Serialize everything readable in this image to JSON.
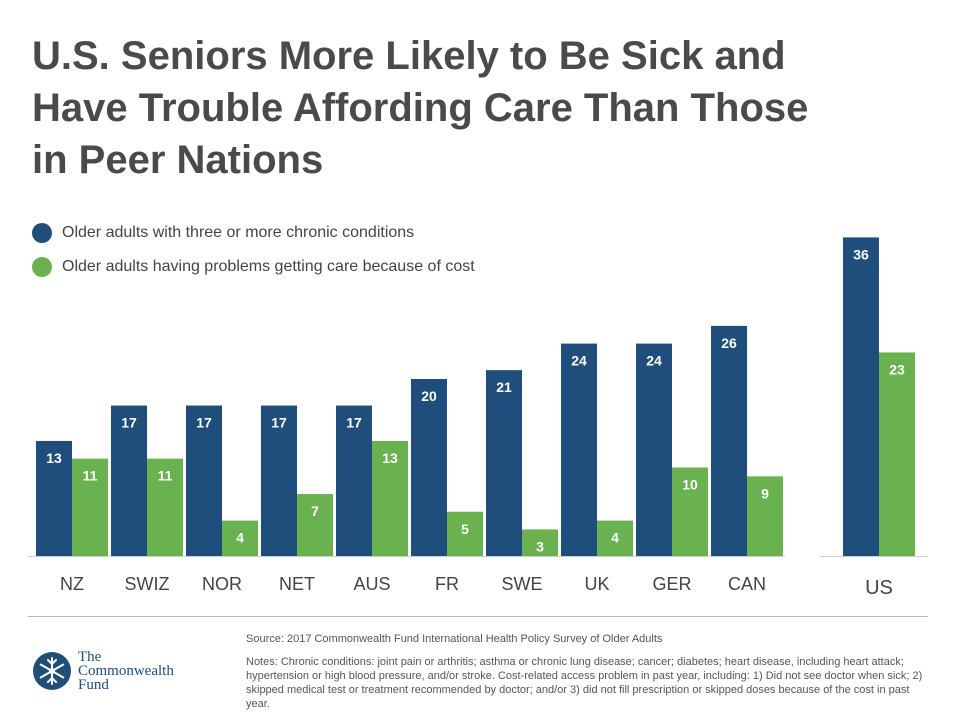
{
  "title_lines": [
    "U.S. Seniors More Likely to Be Sick and",
    "Have Trouble Affording Care Than Those",
    "in Peer Nations"
  ],
  "colors": {
    "blue": "#1f4e7d",
    "green": "#6ab24f",
    "axis": "#cccccc"
  },
  "legend": [
    {
      "label": "Older adults with three or more chronic conditions"
    },
    {
      "label": "Older adults having problems getting care because of cost"
    }
  ],
  "chart_data": {
    "type": "bar",
    "title": "U.S. Seniors More Likely to Be Sick and Have Trouble Affording Care Than Those in Peer Nations",
    "categories": [
      "NZ",
      "SWIZ",
      "NOR",
      "NET",
      "AUS",
      "FR",
      "SWE",
      "UK",
      "GER",
      "CAN",
      "US"
    ],
    "series": [
      {
        "name": "Older adults with three or more chronic conditions",
        "values": [
          13,
          17,
          17,
          17,
          17,
          20,
          21,
          24,
          24,
          26,
          36
        ]
      },
      {
        "name": "Older adults having problems getting care because of cost",
        "values": [
          11,
          11,
          4,
          7,
          13,
          5,
          3,
          4,
          10,
          9,
          23
        ]
      }
    ],
    "xlabel": "",
    "ylabel": "",
    "ylim": [
      0,
      40
    ],
    "grid": false,
    "legend_position": "top-left"
  },
  "footer": {
    "logo_lines": [
      "The",
      "Commonwealth",
      "Fund"
    ],
    "logo_icon": "snowflake-icon",
    "source": "Source: 2017 Commonwealth Fund International Health Policy Survey of Older Adults",
    "notes": "Notes: Chronic conditions: joint pain or arthritis; asthma or chronic lung disease; cancer; diabetes; heart disease, including heart attack; hypertension or high blood pressure, and/or stroke. Cost-related access problem in past year, including: 1) Did not see doctor when sick; 2) skipped medical test or treatment recommended by doctor; and/or 3) did not fill prescription or skipped doses because of the cost in past year."
  }
}
